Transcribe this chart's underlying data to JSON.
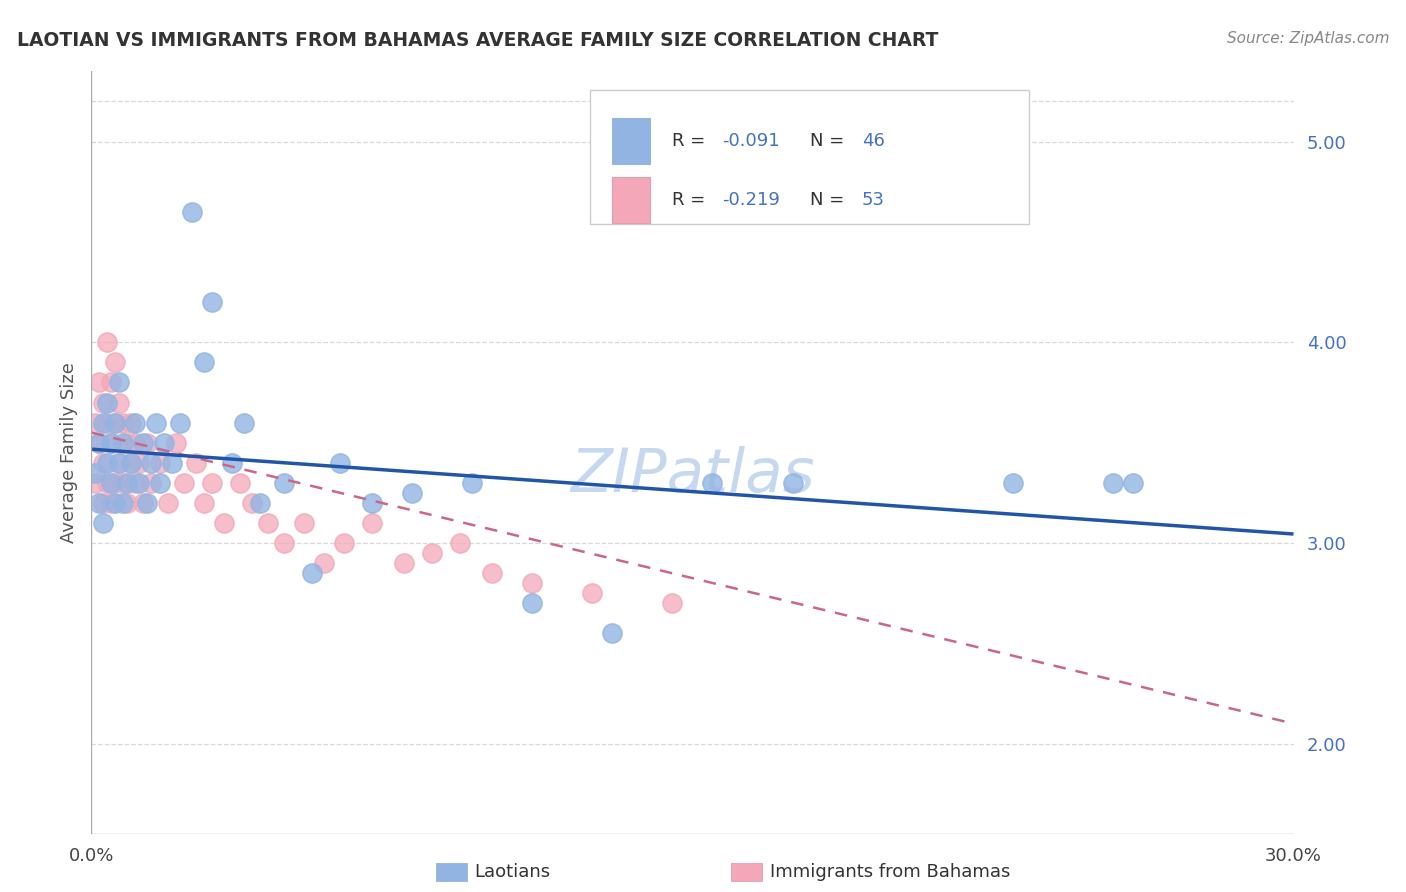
{
  "title": "LAOTIAN VS IMMIGRANTS FROM BAHAMAS AVERAGE FAMILY SIZE CORRELATION CHART",
  "source": "Source: ZipAtlas.com",
  "ylabel": "Average Family Size",
  "xmin": 0.0,
  "xmax": 0.3,
  "ymin": 1.55,
  "ymax": 5.35,
  "yticks": [
    2.0,
    3.0,
    4.0,
    5.0
  ],
  "ytop_line": 5.2,
  "legend_r1": "-0.091",
  "legend_n1": "46",
  "legend_r2": "-0.219",
  "legend_n2": "53",
  "legend_label1": "Laotians",
  "legend_label2": "Immigrants from Bahamas",
  "color_blue": "#92b4e3",
  "color_pink": "#f4a7b9",
  "trendline_blue": "#2255aa",
  "trendline_pink": "#cc6688",
  "text_blue": "#4472c4",
  "watermark_color": "#c5d8f0",
  "background_color": "#ffffff",
  "grid_color": "#d8d8d8",
  "axis_color": "#aaaaaa",
  "blue_x": [
    0.001,
    0.002,
    0.002,
    0.003,
    0.003,
    0.004,
    0.004,
    0.005,
    0.005,
    0.006,
    0.006,
    0.007,
    0.007,
    0.008,
    0.008,
    0.009,
    0.01,
    0.011,
    0.012,
    0.013,
    0.014,
    0.015,
    0.016,
    0.017,
    0.018,
    0.02,
    0.022,
    0.025,
    0.028,
    0.03,
    0.035,
    0.038,
    0.042,
    0.048,
    0.055,
    0.062,
    0.07,
    0.08,
    0.095,
    0.11,
    0.13,
    0.155,
    0.175,
    0.23,
    0.255,
    0.26
  ],
  "blue_y": [
    3.35,
    3.5,
    3.2,
    3.6,
    3.1,
    3.4,
    3.7,
    3.3,
    3.5,
    3.2,
    3.6,
    3.8,
    3.4,
    3.5,
    3.2,
    3.3,
    3.4,
    3.6,
    3.3,
    3.5,
    3.2,
    3.4,
    3.6,
    3.3,
    3.5,
    3.4,
    3.6,
    4.65,
    3.9,
    4.2,
    3.4,
    3.6,
    3.2,
    3.3,
    2.85,
    3.4,
    3.2,
    3.25,
    3.3,
    2.7,
    2.55,
    3.3,
    3.3,
    3.3,
    3.3,
    3.3
  ],
  "pink_x": [
    0.001,
    0.001,
    0.002,
    0.002,
    0.003,
    0.003,
    0.003,
    0.004,
    0.004,
    0.004,
    0.005,
    0.005,
    0.005,
    0.006,
    0.006,
    0.006,
    0.007,
    0.007,
    0.008,
    0.008,
    0.009,
    0.009,
    0.01,
    0.01,
    0.011,
    0.011,
    0.012,
    0.013,
    0.014,
    0.015,
    0.017,
    0.019,
    0.021,
    0.023,
    0.026,
    0.028,
    0.03,
    0.033,
    0.037,
    0.04,
    0.044,
    0.048,
    0.053,
    0.058,
    0.063,
    0.07,
    0.078,
    0.085,
    0.092,
    0.1,
    0.11,
    0.125,
    0.145
  ],
  "pink_y": [
    3.6,
    3.3,
    3.8,
    3.5,
    3.7,
    3.4,
    3.2,
    4.0,
    3.6,
    3.3,
    3.8,
    3.5,
    3.2,
    3.9,
    3.6,
    3.3,
    3.7,
    3.4,
    3.6,
    3.3,
    3.5,
    3.2,
    3.4,
    3.6,
    3.3,
    3.5,
    3.4,
    3.2,
    3.5,
    3.3,
    3.4,
    3.2,
    3.5,
    3.3,
    3.4,
    3.2,
    3.3,
    3.1,
    3.3,
    3.2,
    3.1,
    3.0,
    3.1,
    2.9,
    3.0,
    3.1,
    2.9,
    2.95,
    3.0,
    2.85,
    2.8,
    2.75,
    2.7
  ]
}
